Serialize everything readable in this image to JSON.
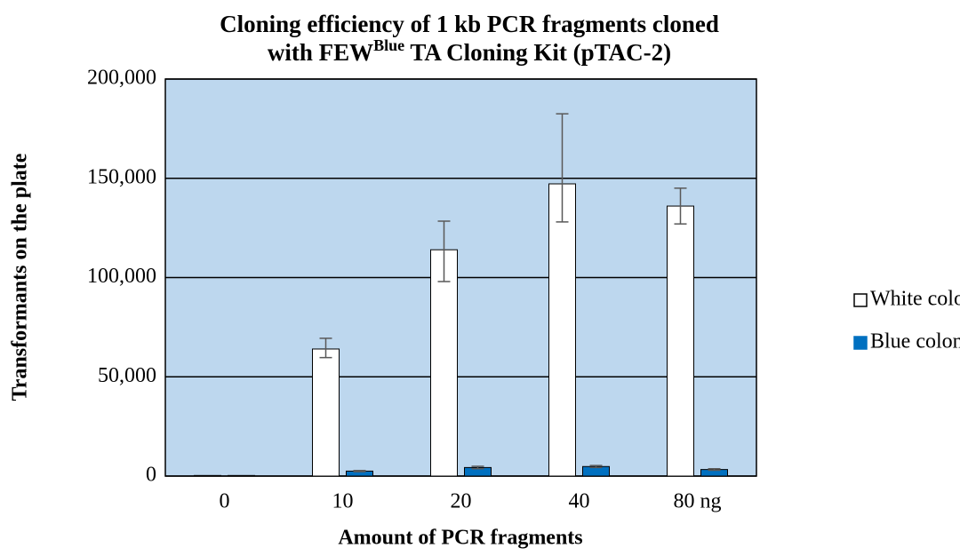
{
  "chart_data": {
    "type": "bar",
    "title": {
      "line1": "Cloning efficiency of 1 kb PCR fragments cloned",
      "line2": {
        "before": "with FEW",
        "sup": "Blue",
        "after": " TA Cloning Kit (pTAC-2)"
      }
    },
    "x_label": "Amount of PCR fragments",
    "y_label": "Transformants on the plate",
    "categories": [
      "0",
      "10",
      "20",
      "40",
      "80 ng"
    ],
    "series": [
      {
        "name": "White colony",
        "color": "#ffffff",
        "values": [
          300,
          64000,
          114000,
          147200,
          136000
        ],
        "error_low": [
          0,
          4300,
          16000,
          19200,
          9000
        ],
        "error_high": [
          0,
          5400,
          14400,
          35300,
          9000
        ]
      },
      {
        "name": "Blue colony",
        "color": "#0070c0",
        "values": [
          300,
          2500,
          4300,
          4800,
          3300
        ],
        "error_low": [
          0,
          300,
          600,
          500,
          400
        ],
        "error_high": [
          0,
          300,
          600,
          500,
          400
        ]
      }
    ],
    "ylim": [
      0,
      200000
    ],
    "yticks": [
      0,
      {
        "value": 50000,
        "label": "50,000"
      },
      {
        "value": 100000,
        "label": "100,000"
      },
      {
        "value": 150000,
        "label": "150,000"
      },
      {
        "value": 200000,
        "label": "200,000"
      }
    ],
    "grid": true,
    "legend": "right",
    "plot_background": "#bdd7ee"
  }
}
